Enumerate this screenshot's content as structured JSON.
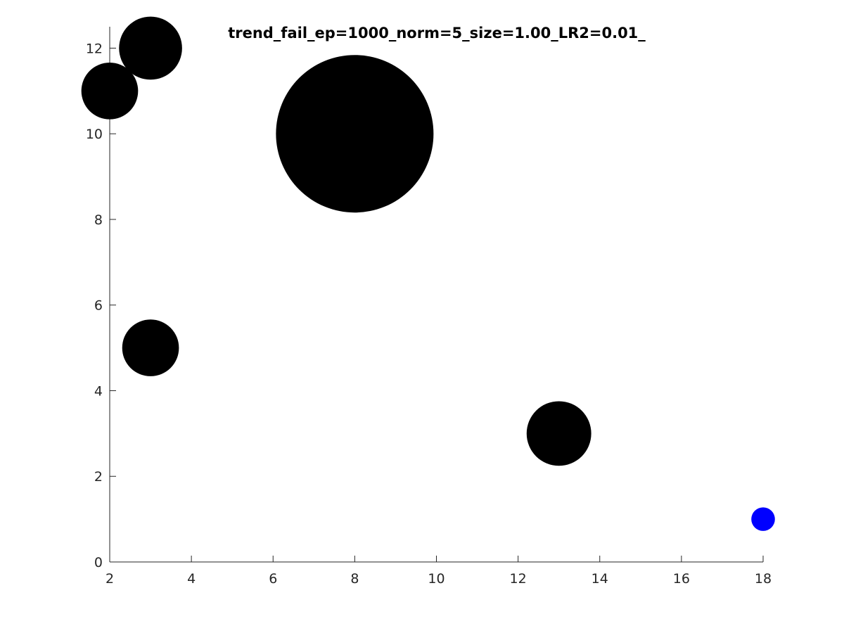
{
  "chart_data": {
    "type": "scatter",
    "title": "trend_fail_ep=1000_norm=5_size=1.00_LR2=0.01_",
    "xlabel": "",
    "ylabel": "",
    "xlim": [
      2,
      18
    ],
    "ylim": [
      0,
      12.5
    ],
    "xticks": [
      2,
      4,
      6,
      8,
      10,
      12,
      14,
      16,
      18
    ],
    "yticks": [
      0,
      2,
      4,
      6,
      8,
      10,
      12
    ],
    "grid": false,
    "legend": "none",
    "points": [
      {
        "x": 3,
        "y": 12,
        "size_rel": 0.4,
        "color": "#000000"
      },
      {
        "x": 2,
        "y": 11,
        "size_rel": 0.36,
        "color": "#000000"
      },
      {
        "x": 8,
        "y": 10,
        "size_rel": 1.0,
        "color": "#000000"
      },
      {
        "x": 3,
        "y": 5,
        "size_rel": 0.36,
        "color": "#000000"
      },
      {
        "x": 13,
        "y": 3,
        "size_rel": 0.41,
        "color": "#000000"
      },
      {
        "x": 18,
        "y": 1,
        "size_rel": 0.15,
        "color": "#0000ff"
      }
    ]
  }
}
